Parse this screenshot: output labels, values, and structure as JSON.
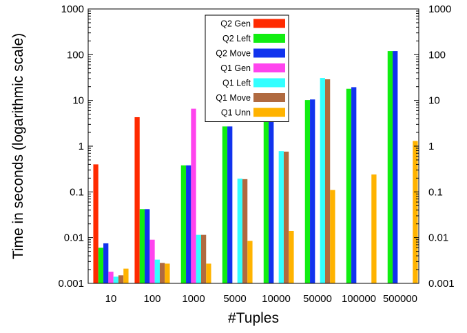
{
  "chart_data": {
    "type": "bar",
    "title": "",
    "xlabel": "#Tuples",
    "ylabel": "Time in seconds (logarithmic scale)",
    "yscale": "log",
    "ylim": [
      0.001,
      1000
    ],
    "yticks": [
      {
        "value": 0.001,
        "label": "0.001"
      },
      {
        "value": 0.01,
        "label": "0.01"
      },
      {
        "value": 0.1,
        "label": "0.1"
      },
      {
        "value": 1,
        "label": "1"
      },
      {
        "value": 10,
        "label": "10"
      },
      {
        "value": 100,
        "label": "100"
      },
      {
        "value": 1000,
        "label": "1000"
      }
    ],
    "mirror_y_axis_right": true,
    "grid": false,
    "legend_position": "top-center",
    "categories": [
      "10",
      "100",
      "1000",
      "5000",
      "10000",
      "50000",
      "100000",
      "500000"
    ],
    "series": [
      {
        "name": "Q2 Gen",
        "color": "#ff2a00",
        "values": [
          0.4,
          4.3,
          null,
          null,
          null,
          null,
          null,
          null
        ]
      },
      {
        "name": "Q2 Left",
        "color": "#11ee11",
        "values": [
          0.006,
          0.042,
          0.38,
          2.7,
          4.5,
          10.2,
          18,
          120
        ]
      },
      {
        "name": "Q2 Move",
        "color": "#1133ee",
        "values": [
          0.0075,
          0.042,
          0.38,
          2.7,
          4.5,
          10.5,
          19.5,
          120
        ]
      },
      {
        "name": "Q1 Gen",
        "color": "#ff44ee",
        "values": [
          0.0018,
          0.009,
          6.6,
          null,
          null,
          null,
          null,
          null
        ]
      },
      {
        "name": "Q1 Left",
        "color": "#33ffff",
        "values": [
          0.0014,
          0.0033,
          0.0115,
          0.195,
          0.78,
          31,
          null,
          null
        ]
      },
      {
        "name": "Q1 Move",
        "color": "#b06a40",
        "values": [
          0.0015,
          0.0028,
          0.0115,
          0.19,
          0.76,
          29,
          null,
          null
        ]
      },
      {
        "name": "Q1 Unn",
        "color": "#ffb300",
        "values": [
          0.0021,
          0.0027,
          0.0027,
          0.0085,
          0.014,
          0.11,
          0.24,
          1.3
        ]
      }
    ]
  }
}
